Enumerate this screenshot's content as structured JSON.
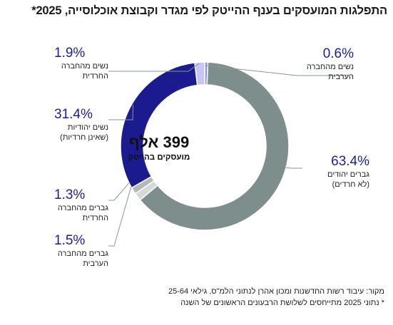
{
  "chart_data": {
    "type": "pie",
    "donut": true,
    "title": "התפלגות המועסקים בענף ההייטק לפי מגדר וקבוצת אוכלוסייה, 2025*",
    "center_value": "399 אלף",
    "center_label": "מועסקים בהייטק",
    "slices": [
      {
        "key": "arab-women",
        "value": 0.6,
        "display": "0.6%",
        "label": [
          "נשים מהחברה",
          "הערבית"
        ],
        "color": "#8f8fe8"
      },
      {
        "key": "jewish-men",
        "value": 63.4,
        "display": "63.4%",
        "label": [
          "גברים יהודים",
          "(לא חרדים)"
        ],
        "color": "#7d8e8c"
      },
      {
        "key": "arab-men",
        "value": 1.5,
        "display": "1.5%",
        "label": [
          "גברים מהחברה",
          "הערבית"
        ],
        "color": "#d5d9d8"
      },
      {
        "key": "haredi-men",
        "value": 1.3,
        "display": "1.3%",
        "label": [
          "גברים מהחברה",
          "החרדית"
        ],
        "color": "#b3bbba"
      },
      {
        "key": "jewish-women",
        "value": 31.4,
        "display": "31.4%",
        "label": [
          "נשים יהודיות",
          "(שאינן חרדיות)"
        ],
        "color": "#1b1a8f"
      },
      {
        "key": "haredi-women",
        "value": 1.9,
        "display": "1.9%",
        "label": [
          "נשים מהחברה",
          "החרדית"
        ],
        "color": "#c5c5f3"
      }
    ]
  },
  "source": {
    "line1": "מקור: עיבוד רשות החדשנות ומכון אהרן לנתוני הלמ\"ס, גילאי 25-64",
    "line2": "* נתוני 2025 מתייחסים לשלושת הרבעונים הראשונים של השנה"
  }
}
